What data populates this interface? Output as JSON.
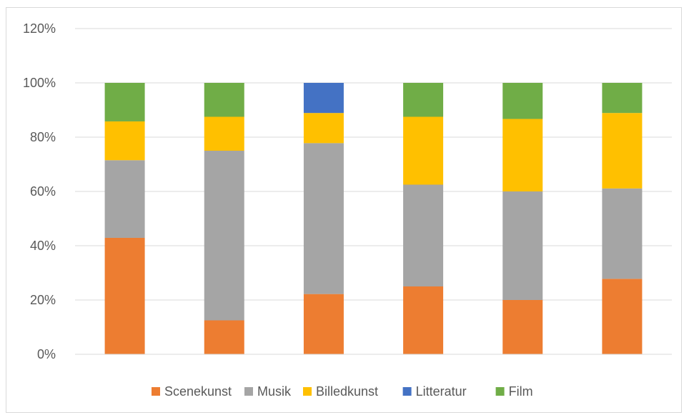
{
  "chart_data": {
    "type": "bar",
    "stacked": true,
    "categories": [
      "",
      "",
      "",
      "",
      "",
      ""
    ],
    "series": [
      {
        "name": "Scenekunst",
        "color": "#ED7D31",
        "values": [
          42.9,
          12.5,
          22.2,
          25.0,
          20.0,
          27.8
        ]
      },
      {
        "name": "Musik",
        "color": "#A5A5A5",
        "values": [
          28.6,
          62.5,
          55.6,
          37.5,
          40.0,
          33.3
        ]
      },
      {
        "name": "Billedkunst",
        "color": "#FFC000",
        "values": [
          14.3,
          12.5,
          11.1,
          25.0,
          26.7,
          27.8
        ]
      },
      {
        "name": "Litteratur",
        "color": "#4472C4",
        "values": [
          0,
          0,
          11.1,
          0,
          0,
          0
        ]
      },
      {
        "name": "Film",
        "color": "#70AD47",
        "values": [
          14.2,
          12.5,
          0,
          12.5,
          13.3,
          11.1
        ]
      }
    ],
    "y_ticks": [
      "0%",
      "20%",
      "40%",
      "60%",
      "80%",
      "100%",
      "120%"
    ],
    "ylim": [
      0,
      120
    ],
    "title": "",
    "xlabel": "",
    "ylabel": "",
    "grid": true,
    "legend_position": "bottom"
  }
}
